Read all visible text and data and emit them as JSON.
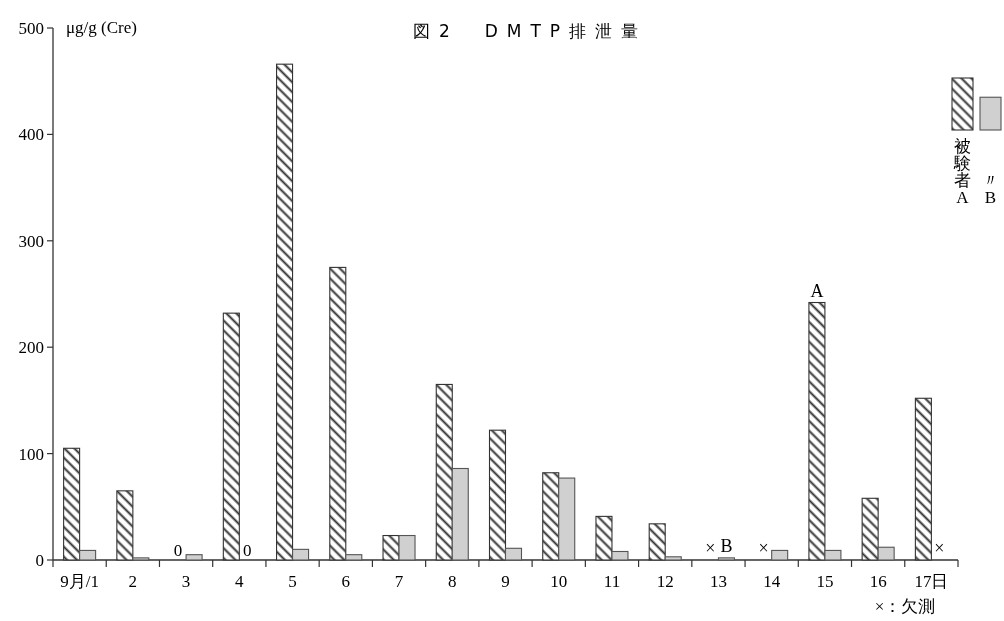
{
  "chart_data": {
    "type": "bar",
    "title": "図2　DMTP排泄量",
    "ylabel": "μg/g (Cre)",
    "categories": [
      "9月/1",
      "2",
      "3",
      "4",
      "5",
      "6",
      "7",
      "8",
      "9",
      "10",
      "11",
      "12",
      "13",
      "14",
      "15",
      "16",
      "17日"
    ],
    "series": [
      {
        "name": "被験者A",
        "color": "#333333",
        "values": [
          105,
          65,
          0,
          232,
          466,
          275,
          23,
          165,
          122,
          82,
          41,
          34,
          null,
          null,
          242,
          58,
          152
        ],
        "value_labels": [
          null,
          null,
          "0",
          null,
          null,
          null,
          null,
          null,
          null,
          null,
          null,
          null,
          null,
          null,
          null,
          null,
          null
        ]
      },
      {
        "name": "〃B",
        "color": "#d0d0d0",
        "values": [
          9,
          2,
          5,
          0,
          10,
          5,
          23,
          86,
          11,
          77,
          8,
          3,
          2,
          9,
          9,
          12,
          null
        ],
        "value_labels": [
          null,
          null,
          null,
          "0",
          null,
          null,
          null,
          null,
          null,
          null,
          null,
          null,
          null,
          null,
          null,
          null,
          null
        ]
      }
    ],
    "ylim": [
      0,
      500
    ],
    "yticks": [
      0,
      100,
      200,
      300,
      400,
      500
    ],
    "legend": "top right",
    "annotations": [
      {
        "text": "×",
        "x": "13",
        "y": 0
      },
      {
        "text": "×",
        "x": "14",
        "y": 0
      },
      {
        "text": "×",
        "x": "17日",
        "y": 0
      },
      {
        "text": "A",
        "x": "15",
        "y": 242
      },
      {
        "text": "B",
        "x": "13",
        "y": 2
      },
      "×：欠測"
    ]
  }
}
